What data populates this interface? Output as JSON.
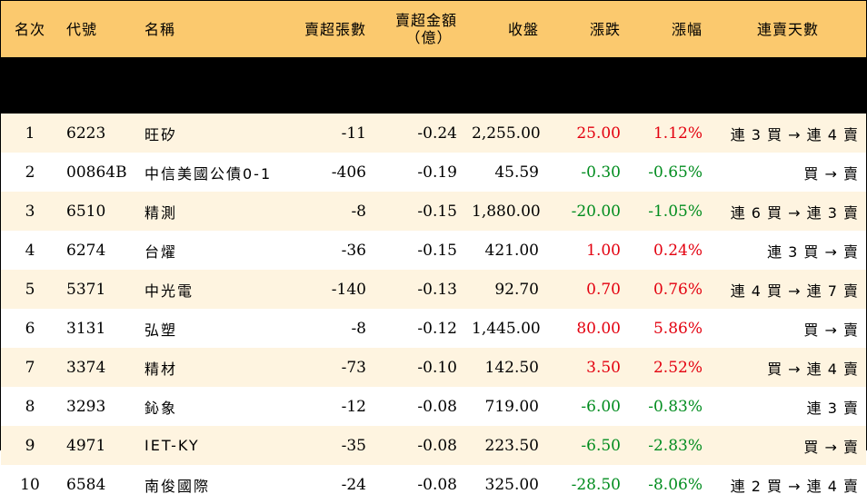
{
  "headers": {
    "rank": "名次",
    "code": "代號",
    "name": "名稱",
    "net_sell_lots": "賣超張數",
    "net_sell_amount_line1": "賣超金額",
    "net_sell_amount_line2": "（億）",
    "close": "收盤",
    "change": "漲跌",
    "change_pct": "漲幅",
    "streak": "連賣天數"
  },
  "colors": {
    "header_bg": "#fbc96e",
    "row_alt_bg": "#fef4e0",
    "up": "#e3000f",
    "down": "#008c1e"
  },
  "rows": [
    {
      "rank": "1",
      "code": "6223",
      "name": "旺矽",
      "lots": "-11",
      "amount": "-0.24",
      "close": "2,255.00",
      "change": "25.00",
      "pct": "1.12%",
      "dir": "up",
      "streak": "連 3 買 → 連 4 賣"
    },
    {
      "rank": "2",
      "code": "00864B",
      "name": "中信美國公債0-1",
      "lots": "-406",
      "amount": "-0.19",
      "close": "45.59",
      "change": "-0.30",
      "pct": "-0.65%",
      "dir": "down",
      "streak": "買 → 賣"
    },
    {
      "rank": "3",
      "code": "6510",
      "name": "精測",
      "lots": "-8",
      "amount": "-0.15",
      "close": "1,880.00",
      "change": "-20.00",
      "pct": "-1.05%",
      "dir": "down",
      "streak": "連 6 買 → 連 3 賣"
    },
    {
      "rank": "4",
      "code": "6274",
      "name": "台燿",
      "lots": "-36",
      "amount": "-0.15",
      "close": "421.00",
      "change": "1.00",
      "pct": "0.24%",
      "dir": "up",
      "streak": "連 3 買 → 賣"
    },
    {
      "rank": "5",
      "code": "5371",
      "name": "中光電",
      "lots": "-140",
      "amount": "-0.13",
      "close": "92.70",
      "change": "0.70",
      "pct": "0.76%",
      "dir": "up",
      "streak": "連 4 買 → 連 7 賣"
    },
    {
      "rank": "6",
      "code": "3131",
      "name": "弘塑",
      "lots": "-8",
      "amount": "-0.12",
      "close": "1,445.00",
      "change": "80.00",
      "pct": "5.86%",
      "dir": "up",
      "streak": "買 → 賣"
    },
    {
      "rank": "7",
      "code": "3374",
      "name": "精材",
      "lots": "-73",
      "amount": "-0.10",
      "close": "142.50",
      "change": "3.50",
      "pct": "2.52%",
      "dir": "up",
      "streak": "買 → 連 4 賣"
    },
    {
      "rank": "8",
      "code": "3293",
      "name": "鈊象",
      "lots": "-12",
      "amount": "-0.08",
      "close": "719.00",
      "change": "-6.00",
      "pct": "-0.83%",
      "dir": "down",
      "streak": "連 3 賣"
    },
    {
      "rank": "9",
      "code": "4971",
      "name": "IET-KY",
      "lots": "-35",
      "amount": "-0.08",
      "close": "223.50",
      "change": "-6.50",
      "pct": "-2.83%",
      "dir": "down",
      "streak": "買 → 賣"
    },
    {
      "rank": "10",
      "code": "6584",
      "name": "南俊國際",
      "lots": "-24",
      "amount": "-0.08",
      "close": "325.00",
      "change": "-28.50",
      "pct": "-8.06%",
      "dir": "down",
      "streak": "連 2 買 → 連 4 賣"
    }
  ]
}
